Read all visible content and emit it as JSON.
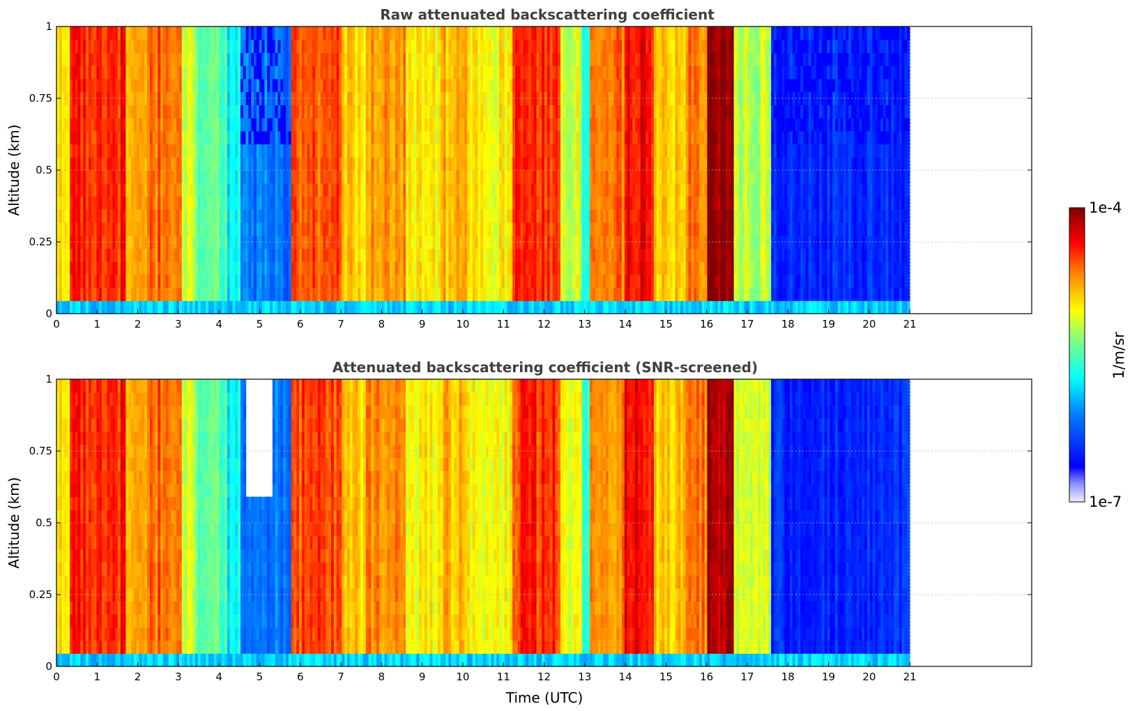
{
  "chart_data": [
    {
      "type": "heatmap",
      "title": "Raw attenuated backscattering coefficient",
      "xlabel": "",
      "ylabel": "Altitude (km)",
      "xlim": [
        0,
        24
      ],
      "ylim": [
        0,
        1
      ],
      "x_ticks": [
        0,
        1,
        2,
        3,
        4,
        5,
        6,
        7,
        8,
        9,
        10,
        11,
        12,
        13,
        14,
        15,
        16,
        17,
        18,
        19,
        20,
        21
      ],
      "x_tick_labels": [
        "0",
        "1",
        "2",
        "3",
        "4",
        "5",
        "6",
        "7",
        "8",
        "9",
        "10",
        "11",
        "12",
        "13",
        "14",
        "15",
        "16",
        "17",
        "18",
        "19",
        "20",
        "21"
      ],
      "y_ticks": [
        0,
        0.25,
        0.5,
        0.75,
        1
      ],
      "y_tick_labels": [
        "0",
        "0.25",
        "0.5",
        "0.75",
        "1"
      ],
      "grid": true,
      "data_extent_hours": [
        0,
        21
      ],
      "screened": false
    },
    {
      "type": "heatmap",
      "title": "Attenuated backscattering coefficient (SNR-screened)",
      "xlabel": "Time (UTC)",
      "ylabel": "Altitude (km)",
      "xlim": [
        0,
        24
      ],
      "ylim": [
        0,
        1
      ],
      "x_ticks": [
        0,
        1,
        2,
        3,
        4,
        5,
        6,
        7,
        8,
        9,
        10,
        11,
        12,
        13,
        14,
        15,
        16,
        17,
        18,
        19,
        20,
        21
      ],
      "x_tick_labels": [
        "0",
        "1",
        "2",
        "3",
        "4",
        "5",
        "6",
        "7",
        "8",
        "9",
        "10",
        "11",
        "12",
        "13",
        "14",
        "15",
        "16",
        "17",
        "18",
        "19",
        "20",
        "21"
      ],
      "y_ticks": [
        0,
        0.25,
        0.5,
        0.75,
        1
      ],
      "y_tick_labels": [
        "0",
        "0.25",
        "0.5",
        "0.75",
        "1"
      ],
      "grid": true,
      "data_extent_hours": [
        0,
        21
      ],
      "screened": true
    }
  ],
  "colorbar": {
    "label": "1/m/sr",
    "max_label": "1e-4",
    "min_label": "1e-7",
    "scale": "log",
    "range": [
      1e-07,
      0.0001
    ],
    "colormap": "jet"
  },
  "time_segments": [
    {
      "t0": 0.0,
      "t1": 0.3,
      "level": 0.68
    },
    {
      "t0": 0.3,
      "t1": 1.7,
      "level": 0.86
    },
    {
      "t0": 1.7,
      "t1": 2.2,
      "level": 0.72
    },
    {
      "t0": 2.2,
      "t1": 3.1,
      "level": 0.8
    },
    {
      "t0": 3.1,
      "t1": 3.5,
      "level": 0.6
    },
    {
      "t0": 3.5,
      "t1": 4.2,
      "level": 0.52
    },
    {
      "t0": 4.2,
      "t1": 4.5,
      "level": 0.42
    },
    {
      "t0": 4.5,
      "t1": 5.8,
      "level": 0.28
    },
    {
      "t0": 5.8,
      "t1": 7.0,
      "level": 0.82
    },
    {
      "t0": 7.0,
      "t1": 7.6,
      "level": 0.7
    },
    {
      "t0": 7.6,
      "t1": 8.6,
      "level": 0.76
    },
    {
      "t0": 8.6,
      "t1": 9.4,
      "level": 0.66
    },
    {
      "t0": 9.4,
      "t1": 10.2,
      "level": 0.72
    },
    {
      "t0": 10.2,
      "t1": 11.2,
      "level": 0.66
    },
    {
      "t0": 11.2,
      "t1": 12.4,
      "level": 0.84
    },
    {
      "t0": 12.4,
      "t1": 12.9,
      "level": 0.62
    },
    {
      "t0": 12.9,
      "t1": 13.1,
      "level": 0.48
    },
    {
      "t0": 13.1,
      "t1": 14.0,
      "level": 0.78
    },
    {
      "t0": 14.0,
      "t1": 14.7,
      "level": 0.88
    },
    {
      "t0": 14.7,
      "t1": 15.5,
      "level": 0.7
    },
    {
      "t0": 15.5,
      "t1": 16.0,
      "level": 0.78
    },
    {
      "t0": 16.0,
      "t1": 16.7,
      "level": 0.97
    },
    {
      "t0": 16.7,
      "t1": 17.6,
      "level": 0.6
    },
    {
      "t0": 17.6,
      "t1": 21.0,
      "level": 0.18
    }
  ]
}
